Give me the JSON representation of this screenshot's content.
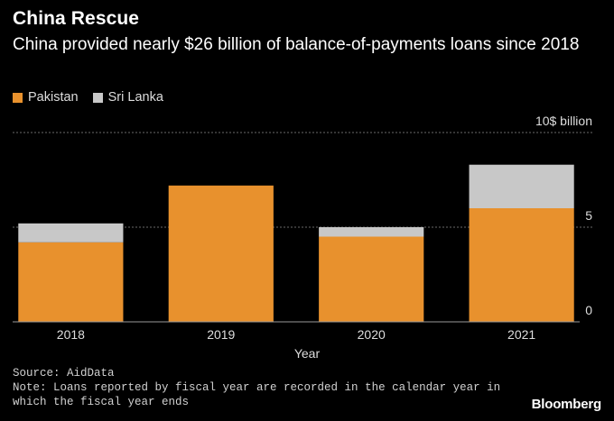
{
  "header": {
    "title": "China Rescue",
    "subtitle": "China provided nearly $26 billion of balance-of-payments loans since 2018"
  },
  "legend": [
    {
      "label": "Pakistan",
      "color": "#E8912D"
    },
    {
      "label": "Sri Lanka",
      "color": "#C8C8C8"
    }
  ],
  "chart_data": {
    "type": "bar",
    "stacked": true,
    "categories": [
      "2018",
      "2019",
      "2020",
      "2021"
    ],
    "series": [
      {
        "name": "Pakistan",
        "color": "#E8912D",
        "values": [
          4.2,
          7.2,
          4.5,
          6.0
        ]
      },
      {
        "name": "Sri Lanka",
        "color": "#C8C8C8",
        "values": [
          1.0,
          0,
          0.5,
          2.3
        ]
      }
    ],
    "yticks": [
      0,
      5,
      10
    ],
    "ytick_labels": [
      "0",
      "5",
      "10$ billion"
    ],
    "ylim": [
      0,
      10
    ],
    "xlabel": "Year",
    "ylabel": "",
    "grid": true,
    "legend_position": "top-left"
  },
  "footer": {
    "source": "Source: AidData",
    "note": "Note: Loans reported by fiscal year are recorded in the calendar year in which the fiscal year ends",
    "brand": "Bloomberg"
  }
}
